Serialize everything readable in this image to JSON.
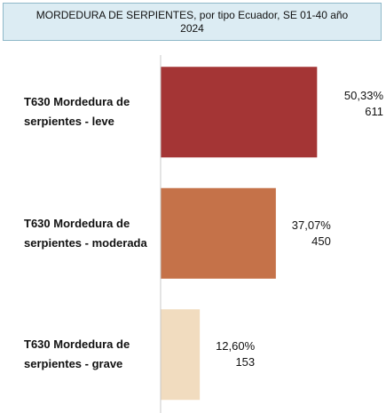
{
  "chart_data": {
    "type": "bar",
    "orientation": "horizontal",
    "title": "MORDEDURA DE SERPIENTES, por tipo Ecuador, SE 01-40 año 2024",
    "categories": [
      "T630 Mordedura de serpientes - leve",
      "T630 Mordedura de serpientes - moderada",
      "T630 Mordedura de serpientes - grave"
    ],
    "values": [
      611,
      450,
      153
    ],
    "shares": [
      50.33,
      37.07,
      12.6
    ],
    "share_labels": [
      "50,33%",
      "37,07%",
      "12,60%"
    ],
    "colors": [
      "#a43535",
      "#c57249",
      "#f1dcbf"
    ],
    "xlim": [
      0,
      700
    ]
  }
}
